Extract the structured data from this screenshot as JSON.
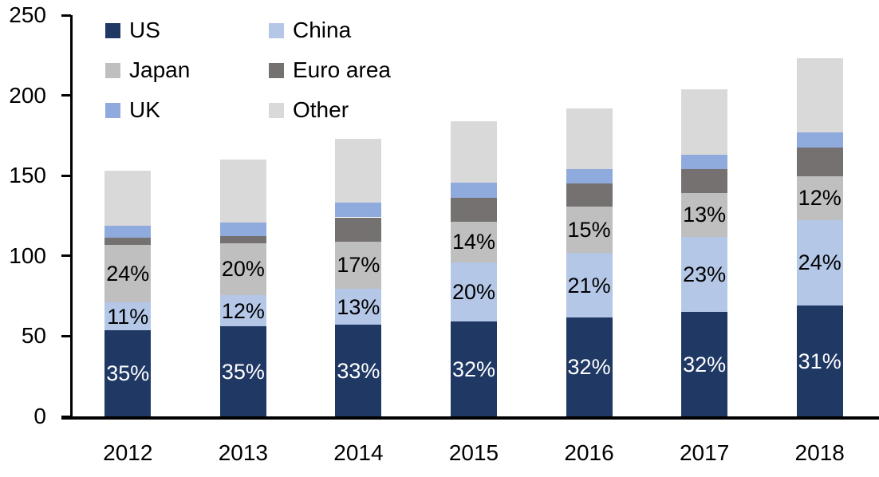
{
  "chart_data": {
    "type": "bar",
    "stacked": true,
    "title": "",
    "xlabel": "",
    "ylabel": "",
    "categories": [
      "2012",
      "2013",
      "2014",
      "2015",
      "2016",
      "2017",
      "2018"
    ],
    "totals": [
      153,
      160,
      173,
      184,
      192,
      204,
      223
    ],
    "series": [
      {
        "name": "US",
        "color": "#1F3864",
        "values": [
          53.5,
          56,
          57,
          59,
          61.5,
          65,
          69
        ],
        "data_labels": [
          "35%",
          "35%",
          "33%",
          "32%",
          "32%",
          "32%",
          "31%"
        ],
        "label_color": "#FFFFFF"
      },
      {
        "name": "China",
        "color": "#B4C7E7",
        "values": [
          17.5,
          19.5,
          22.5,
          37,
          40.5,
          47,
          53.5
        ],
        "data_labels": [
          "11%",
          "12%",
          "13%",
          "20%",
          "21%",
          "23%",
          "24%"
        ],
        "label_color": "#000000"
      },
      {
        "name": "Japan",
        "color": "#BFBFBF",
        "values": [
          36,
          32.5,
          29.5,
          25.5,
          28.5,
          27,
          27
        ],
        "data_labels": [
          "24%",
          "20%",
          "17%",
          "14%",
          "15%",
          "13%",
          "12%"
        ],
        "label_color": "#000000"
      },
      {
        "name": "Euro area",
        "color": "#767171",
        "values": [
          4.5,
          4.5,
          15,
          14.5,
          14.5,
          15,
          18
        ],
        "data_labels": [],
        "label_color": "#000000"
      },
      {
        "name": "UK",
        "color": "#8FAADC",
        "values": [
          7.5,
          8.5,
          9,
          9.5,
          9,
          9,
          9.5
        ],
        "data_labels": [],
        "label_color": "#000000"
      },
      {
        "name": "Other",
        "color": "#D9D9D9",
        "values": [
          34,
          39,
          40,
          38.5,
          38,
          41,
          46
        ],
        "data_labels": [],
        "label_color": "#000000"
      }
    ],
    "y_axis": {
      "min": 0,
      "max": 250,
      "step": 50,
      "tick_labels": [
        "0",
        "50",
        "100",
        "150",
        "200",
        "250"
      ]
    },
    "legend": {
      "position": "top-left",
      "columns": [
        [
          "US",
          "Japan",
          "UK"
        ],
        [
          "China",
          "Euro area",
          "Other"
        ]
      ]
    },
    "grid": false,
    "axis_color": "#000000",
    "text_color": "#000000"
  }
}
